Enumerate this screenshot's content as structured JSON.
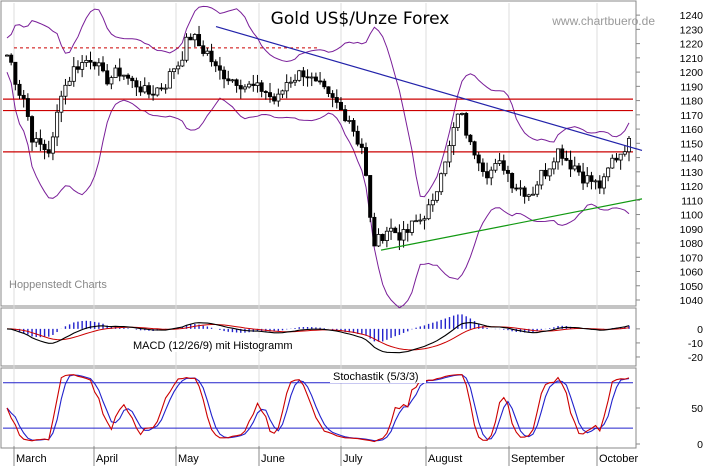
{
  "chart_data": [
    {
      "type": "candlestick",
      "title": "Gold US$/Unze Forex",
      "source_url": "www.chartbuero.de",
      "watermark": "Hoppenstedt Charts",
      "x_months": [
        "March",
        "April",
        "May",
        "June",
        "July",
        "August",
        "September",
        "October"
      ],
      "y_ticks": [
        1040,
        1050,
        1060,
        1070,
        1080,
        1090,
        1100,
        1110,
        1120,
        1130,
        1140,
        1150,
        1160,
        1170,
        1180,
        1190,
        1200,
        1210,
        1220,
        1230,
        1240
      ],
      "ylim": [
        1040,
        1245
      ],
      "horizontal_lines": [
        1181,
        1173,
        1144
      ],
      "dashed_line": {
        "value": 1217,
        "from": "March",
        "to": "June"
      },
      "trendlines": [
        {
          "name": "resistance",
          "from": {
            "date": "May",
            "value": 1232
          },
          "to": {
            "date": "October",
            "value": 1145
          },
          "color": "#2222aa"
        },
        {
          "name": "support",
          "from": {
            "date": "July",
            "value": 1075
          },
          "to": {
            "date": "October",
            "value": 1111
          },
          "color": "#119911"
        }
      ],
      "series": [
        {
          "name": "close",
          "approx_path": [
            1212,
            1185,
            1150,
            1145,
            1190,
            1205,
            1210,
            1195,
            1200,
            1192,
            1185,
            1190,
            1205,
            1225,
            1215,
            1200,
            1195,
            1190,
            1188,
            1180,
            1195,
            1200,
            1190,
            1180,
            1170,
            1150,
            1080,
            1090,
            1085,
            1095,
            1105,
            1140,
            1170,
            1145,
            1130,
            1135,
            1120,
            1115,
            1130,
            1145,
            1135,
            1125,
            1120,
            1140,
            1150
          ]
        }
      ],
      "overlays": [
        "Bollinger Bands",
        "Trendlines"
      ]
    },
    {
      "type": "line",
      "title": "MACD (12/26/9) mit Histogramm",
      "y_ticks": [
        0,
        -10,
        -20
      ],
      "ylim": [
        -25,
        12
      ],
      "series": [
        {
          "name": "MACD",
          "color": "#000000"
        },
        {
          "name": "Signal",
          "color": "#cc0000"
        },
        {
          "name": "Histogramm",
          "color": "#2222cc"
        }
      ]
    },
    {
      "type": "line",
      "title": "Stochastik (5/3/3)",
      "y_ticks": [
        50,
        0
      ],
      "ylim": [
        0,
        100
      ],
      "horizontal_lines": [
        85,
        22
      ],
      "series": [
        {
          "name": "%K",
          "color": "#cc0000"
        },
        {
          "name": "%D",
          "color": "#2222cc"
        }
      ]
    }
  ]
}
